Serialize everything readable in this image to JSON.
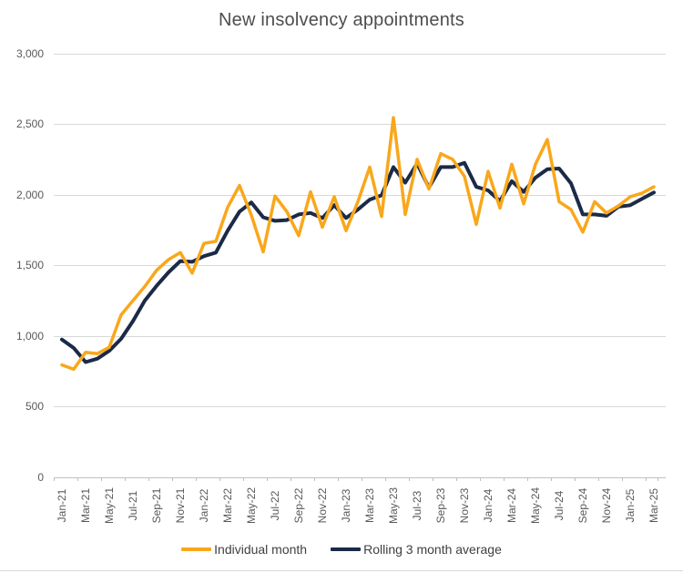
{
  "title": "New insolvency appointments",
  "legend": {
    "items": [
      {
        "label": "Individual month",
        "color": "#F9A71B"
      },
      {
        "label": "Rolling 3 month average",
        "color": "#1B2A47"
      }
    ],
    "position": "bottom"
  },
  "colors": {
    "individual_month": "#F9A71B",
    "rolling_average": "#1B2A47",
    "gridline": "#D9D9D9",
    "axis_text": "#595959",
    "title_text": "#4D4D4D",
    "background": "#FFFFFF"
  },
  "chart_data": {
    "type": "line",
    "title": "New insolvency appointments",
    "xlabel": "",
    "ylabel": "",
    "ylim": [
      0,
      3000
    ],
    "y_tick_values": [
      0,
      500,
      1000,
      1500,
      2000,
      2500,
      3000
    ],
    "y_tick_labels": [
      "0",
      "500",
      "1,000",
      "1,500",
      "2,000",
      "2,500",
      "3,000"
    ],
    "x_label_interval": 2,
    "grid": "horizontal",
    "legend_position": "bottom",
    "x": [
      "Jan-21",
      "Feb-21",
      "Mar-21",
      "Apr-21",
      "May-21",
      "Jun-21",
      "Jul-21",
      "Aug-21",
      "Sep-21",
      "Oct-21",
      "Nov-21",
      "Dec-21",
      "Jan-22",
      "Feb-22",
      "Mar-22",
      "Apr-22",
      "May-22",
      "Jun-22",
      "Jul-22",
      "Aug-22",
      "Sep-22",
      "Oct-22",
      "Nov-22",
      "Dec-22",
      "Jan-23",
      "Feb-23",
      "Mar-23",
      "Apr-23",
      "May-23",
      "Jun-23",
      "Jul-23",
      "Aug-23",
      "Sep-23",
      "Oct-23",
      "Nov-23",
      "Dec-23",
      "Jan-24",
      "Feb-24",
      "Mar-24",
      "Apr-24",
      "May-24",
      "Jun-24",
      "Jul-24",
      "Aug-24",
      "Sep-24",
      "Oct-24",
      "Nov-24",
      "Dec-24",
      "Jan-25",
      "Feb-25",
      "Mar-25"
    ],
    "series": [
      {
        "name": "Individual month",
        "color": "#F9A71B",
        "stroke_width": 3.5,
        "values": [
          795,
          765,
          885,
          875,
          920,
          1150,
          1250,
          1350,
          1465,
          1540,
          1590,
          1445,
          1655,
          1670,
          1910,
          2065,
          1855,
          1595,
          1990,
          1880,
          1710,
          2020,
          1770,
          1985,
          1745,
          1950,
          2195,
          1845,
          2545,
          1860,
          2250,
          2040,
          2290,
          2250,
          2130,
          1790,
          2165,
          1905,
          2215,
          1935,
          2215,
          2390,
          1950,
          1895,
          1735,
          1950,
          1870,
          1920,
          1985,
          2010,
          2055
        ]
      },
      {
        "name": "Rolling 3 month average",
        "color": "#1B2A47",
        "stroke_width": 4,
        "values": [
          975,
          915,
          815,
          840,
          895,
          980,
          1105,
          1250,
          1355,
          1450,
          1530,
          1525,
          1565,
          1590,
          1745,
          1880,
          1945,
          1840,
          1815,
          1820,
          1860,
          1870,
          1835,
          1925,
          1835,
          1895,
          1965,
          1995,
          2195,
          2085,
          2220,
          2050,
          2195,
          2195,
          2225,
          2055,
          2030,
          1955,
          2095,
          2020,
          2120,
          2180,
          2185,
          2080,
          1860,
          1860,
          1850,
          1915,
          1925,
          1970,
          2015
        ]
      }
    ]
  }
}
